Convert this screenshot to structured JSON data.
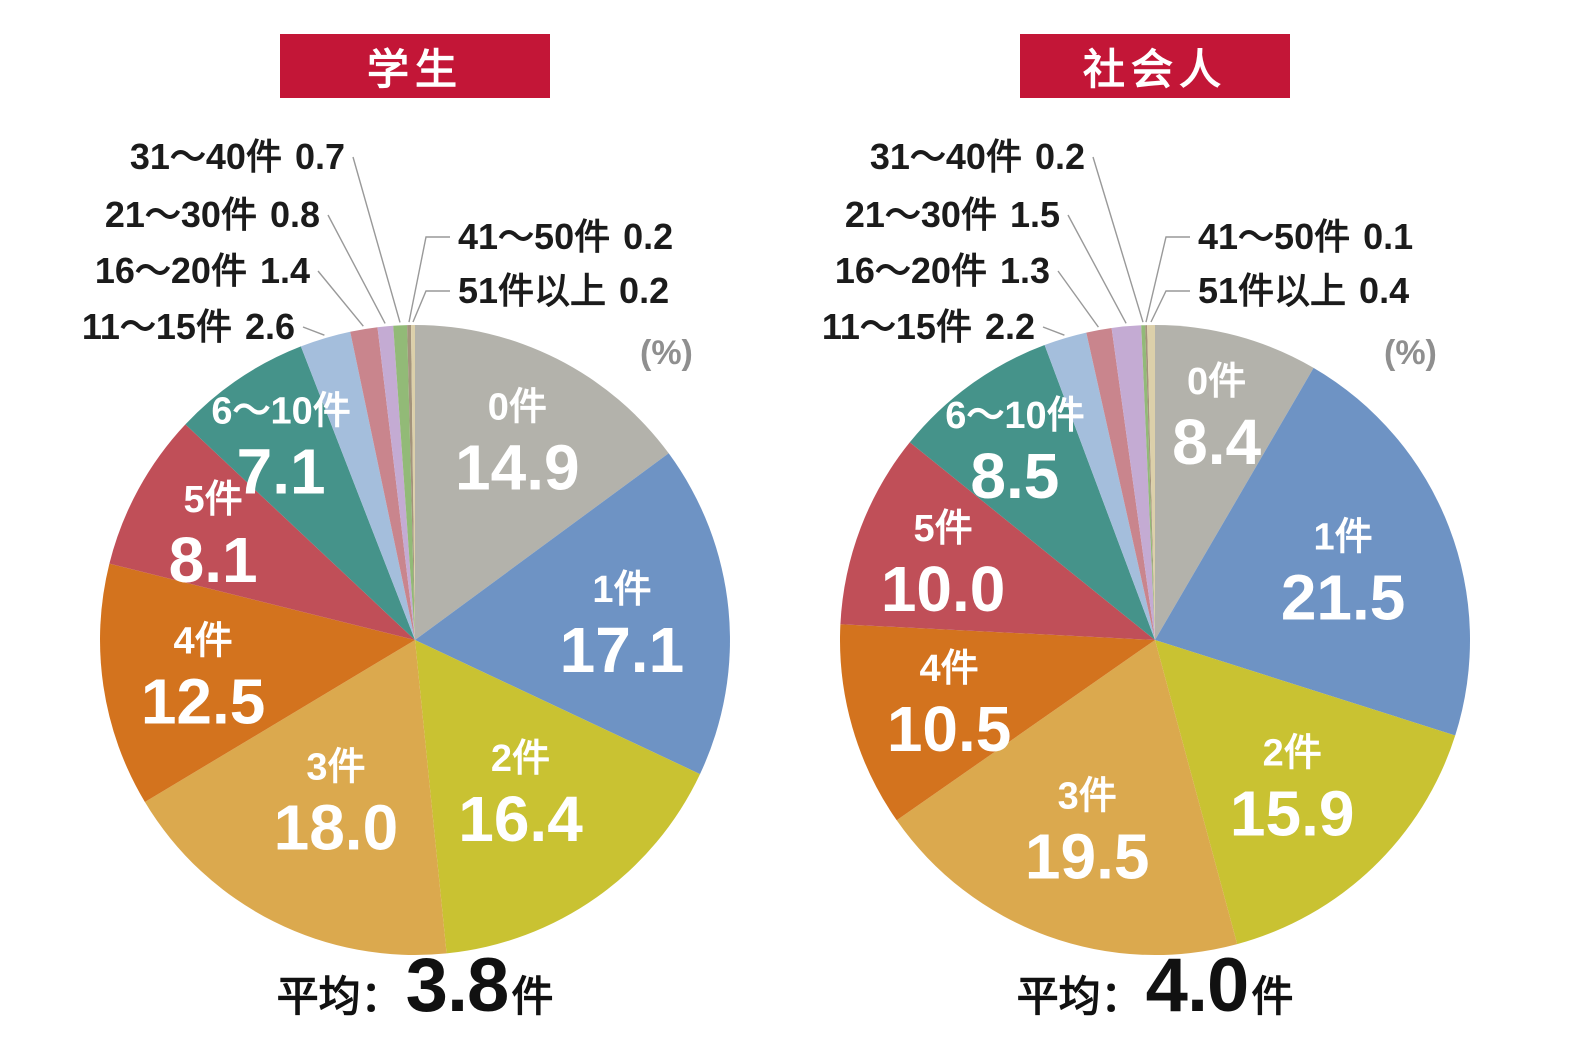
{
  "accent_colors": {
    "badge_red": "#c31637",
    "leader_line": "#999999",
    "percent_gray": "#8f8f8f",
    "label_text": "#1b1b1b",
    "slice_label_text": "#ffffff"
  },
  "chart_data": [
    {
      "type": "pie",
      "title": "学生",
      "unit_display": "(%)",
      "start_angle": "top",
      "direction": "clockwise",
      "categories": [
        "0件",
        "1件",
        "2件",
        "3件",
        "4件",
        "5件",
        "6〜10件",
        "11〜15件",
        "16〜20件",
        "21〜30件",
        "31〜40件",
        "41〜50件",
        "51件以上"
      ],
      "values": [
        14.9,
        17.1,
        16.4,
        18.0,
        12.5,
        8.1,
        7.1,
        2.6,
        1.4,
        0.8,
        0.7,
        0.2,
        0.2
      ],
      "value_labels": [
        "14.9",
        "17.1",
        "16.4",
        "18.0",
        "12.5",
        "8.1",
        "7.1",
        "2.6",
        "1.4",
        "0.8",
        "0.7",
        "0.2",
        "0.2"
      ],
      "colors": [
        "#b3b2ab",
        "#6e93c4",
        "#c9c232",
        "#dba94e",
        "#d3731e",
        "#c04f58",
        "#45938a",
        "#a4bedc",
        "#c9858d",
        "#c4abd3",
        "#92ba77",
        "#a3937c",
        "#dcd0aa"
      ],
      "average_label": {
        "prefix": "平均：",
        "value": "3.8",
        "suffix": "件"
      }
    },
    {
      "type": "pie",
      "title": "社会人",
      "unit_display": "(%)",
      "start_angle": "top",
      "direction": "clockwise",
      "categories": [
        "0件",
        "1件",
        "2件",
        "3件",
        "4件",
        "5件",
        "6〜10件",
        "11〜15件",
        "16〜20件",
        "21〜30件",
        "31〜40件",
        "41〜50件",
        "51件以上"
      ],
      "values": [
        8.4,
        21.5,
        15.9,
        19.5,
        10.5,
        10.0,
        8.5,
        2.2,
        1.3,
        1.5,
        0.2,
        0.1,
        0.4
      ],
      "value_labels": [
        "8.4",
        "21.5",
        "15.9",
        "19.5",
        "10.5",
        "10.0",
        "8.5",
        "2.2",
        "1.3",
        "1.5",
        "0.2",
        "0.1",
        "0.4"
      ],
      "colors": [
        "#b3b2ab",
        "#6e93c4",
        "#c9c232",
        "#dba94e",
        "#d3731e",
        "#c04f58",
        "#45938a",
        "#a4bedc",
        "#c9858d",
        "#c4abd3",
        "#92ba77",
        "#a3937c",
        "#dcd0aa"
      ],
      "average_label": {
        "prefix": "平均：",
        "value": "4.0",
        "suffix": "件"
      }
    }
  ]
}
